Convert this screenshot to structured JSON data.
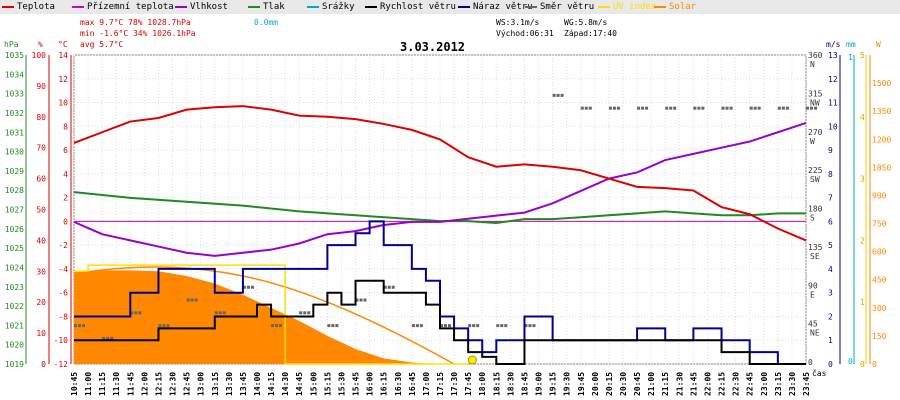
{
  "legend": [
    {
      "label": "Teplota",
      "color": "#dd0000"
    },
    {
      "label": "Přízemní teplota",
      "color": "#cc00cc"
    },
    {
      "label": "Vlhkost",
      "color": "#9900cc"
    },
    {
      "label": "Tlak",
      "color": "#228822"
    },
    {
      "label": "Srážky",
      "color": "#00aacc"
    },
    {
      "label": "Rychlost větru",
      "color": "#000000"
    },
    {
      "label": "Náraz větru",
      "color": "#000099"
    },
    {
      "label": "Směr větru",
      "color": "#666666"
    },
    {
      "label": "UV index",
      "color": "#ffdd00"
    },
    {
      "label": "Solar",
      "color": "#ff8800"
    }
  ],
  "stats": {
    "max": "max  9.7°C  78%  1028.7hPa",
    "min": "min -1.6°C  34%  1026.1hPa",
    "avg": "avg  5.7°C",
    "rain": "0.0mm",
    "ws": "WS:3.1m/s",
    "wg": "WG:5.8m/s",
    "sunrise": "Východ:06:31",
    "sunset": "Západ:17:40"
  },
  "date": "3.03.2012",
  "colors": {
    "temp": "#dd0000",
    "hum": "#9900cc",
    "press": "#228822",
    "rain": "#00aacc",
    "wind": "#000000",
    "gust": "#000099",
    "dir": "#666666",
    "uv": "#ffdd00",
    "solar": "#ff8800"
  },
  "chart_data": {
    "type": "line",
    "xlabel": "čas",
    "x_ticks": [
      "10:45",
      "11:00",
      "11:15",
      "11:30",
      "11:45",
      "12:00",
      "12:15",
      "12:30",
      "12:45",
      "13:00",
      "13:15",
      "13:30",
      "13:45",
      "14:00",
      "14:15",
      "14:30",
      "14:45",
      "15:00",
      "15:15",
      "15:30",
      "15:45",
      "16:00",
      "16:15",
      "16:30",
      "16:45",
      "17:00",
      "17:15",
      "17:30",
      "17:45",
      "18:00",
      "18:15",
      "18:30",
      "18:45",
      "19:00",
      "19:15",
      "19:30",
      "19:45",
      "20:00",
      "20:15",
      "20:30",
      "20:45",
      "21:00",
      "21:15",
      "21:30",
      "21:45",
      "22:00",
      "22:15",
      "22:30",
      "22:45",
      "23:00",
      "23:15",
      "23:30",
      "23:45"
    ],
    "axes": {
      "hpa": {
        "label": "hPa",
        "range": [
          1019,
          1035
        ],
        "ticks": [
          "1035",
          "1034",
          "1033",
          "1032",
          "1031",
          "1030",
          "1029",
          "1028",
          "1027",
          "1026",
          "1025",
          "1024",
          "1023",
          "1022",
          "1021",
          "1020",
          "1019"
        ]
      },
      "pct": {
        "label": "%",
        "range": [
          0,
          100
        ],
        "ticks": [
          "100",
          "90",
          "80",
          "70",
          "60",
          "50",
          "40",
          "30",
          "20",
          "10",
          "0"
        ]
      },
      "temp": {
        "label": "°C",
        "range": [
          -12,
          14
        ],
        "ticks": [
          "14",
          "12",
          "10",
          "8",
          "6",
          "4",
          "2",
          "0",
          "-2",
          "-4",
          "-6",
          "-8",
          "-10",
          "-12"
        ]
      },
      "dir": {
        "ticks": [
          {
            "deg": 360,
            "label": "360",
            "sub": "N"
          },
          {
            "deg": 315,
            "label": "315",
            "sub": "NW"
          },
          {
            "deg": 270,
            "label": "270",
            "sub": "W"
          },
          {
            "deg": 225,
            "label": "225",
            "sub": "SW"
          },
          {
            "deg": 180,
            "label": "180",
            "sub": "S"
          },
          {
            "deg": 135,
            "label": "135",
            "sub": "SE"
          },
          {
            "deg": 90,
            "label": "90",
            "sub": "E"
          },
          {
            "deg": 45,
            "label": "45",
            "sub": "NE"
          },
          {
            "deg": 0,
            "label": "0",
            "sub": ""
          }
        ]
      },
      "ms": {
        "label": "m/s",
        "range": [
          0,
          13
        ],
        "ticks": [
          "13",
          "12",
          "11",
          "10",
          "9",
          "8",
          "7",
          "6",
          "5",
          "4",
          "3",
          "2",
          "1",
          "0"
        ]
      },
      "mm": {
        "label": "mm",
        "range": [
          0,
          1
        ],
        "ticks": [
          "1",
          "0"
        ]
      },
      "uv": {
        "label": "",
        "range": [
          0,
          5
        ],
        "ticks": [
          "5",
          "4",
          "3",
          "2",
          "1",
          "0"
        ]
      },
      "w": {
        "label": "W",
        "range": [
          0,
          1650
        ],
        "ticks": [
          "1500",
          "1350",
          "1200",
          "1050",
          "900",
          "750",
          "600",
          "450",
          "300",
          "150",
          "0"
        ]
      }
    },
    "series": [
      {
        "name": "Teplota",
        "axis": "temp",
        "x": [
          0,
          2,
          4,
          6,
          8,
          10,
          12,
          14,
          16,
          18,
          20,
          22,
          24,
          26,
          28,
          30,
          32,
          34,
          36,
          38,
          40,
          42,
          44,
          46,
          48,
          50,
          52
        ],
        "values": [
          6.6,
          7.5,
          8.4,
          8.7,
          9.4,
          9.6,
          9.7,
          9.4,
          8.9,
          8.8,
          8.6,
          8.2,
          7.7,
          6.9,
          5.4,
          4.6,
          4.8,
          4.6,
          4.3,
          3.6,
          2.9,
          2.8,
          2.6,
          1.2,
          0.6,
          -0.6,
          -1.6
        ]
      },
      {
        "name": "Vlhkost",
        "axis": "pct",
        "x": [
          0,
          1,
          2,
          4,
          6,
          8,
          10,
          12,
          14,
          16,
          18,
          20,
          22,
          24,
          26,
          28,
          30,
          32,
          34,
          36,
          38,
          40,
          42,
          44,
          46,
          48,
          50,
          52
        ],
        "values": [
          46,
          44,
          42,
          40,
          38,
          36,
          35,
          36,
          37,
          39,
          42,
          43,
          45,
          46,
          46,
          47,
          48,
          49,
          52,
          56,
          60,
          62,
          66,
          68,
          70,
          72,
          75,
          78
        ]
      },
      {
        "name": "Tlak",
        "axis": "hpa",
        "x": [
          0,
          4,
          8,
          12,
          16,
          20,
          24,
          26,
          28,
          30,
          32,
          34,
          36,
          38,
          40,
          42,
          44,
          46,
          48,
          50,
          52
        ],
        "values": [
          1027.9,
          1027.6,
          1027.4,
          1027.2,
          1026.9,
          1026.7,
          1026.5,
          1026.4,
          1026.4,
          1026.3,
          1026.5,
          1026.5,
          1026.6,
          1026.7,
          1026.8,
          1026.9,
          1026.8,
          1026.7,
          1026.7,
          1026.8,
          1026.8
        ]
      },
      {
        "name": "Rychlost větru",
        "axis": "ms",
        "x": [
          0,
          2,
          4,
          6,
          8,
          10,
          12,
          13,
          14,
          16,
          17,
          18,
          19,
          20,
          22,
          24,
          25,
          26,
          27,
          28,
          29,
          30,
          32,
          34,
          36,
          38,
          40,
          42,
          44,
          46,
          48,
          50,
          52
        ],
        "values": [
          1,
          1,
          1,
          1.5,
          1.5,
          2,
          2,
          2.5,
          2,
          2,
          2.5,
          3,
          2.5,
          3.5,
          3,
          3,
          2.5,
          1.5,
          1,
          0.5,
          0.3,
          0,
          1,
          1,
          1,
          1,
          1,
          1,
          1,
          0.5,
          0,
          0,
          0
        ]
      },
      {
        "name": "Náraz větru",
        "axis": "ms",
        "x": [
          0,
          2,
          4,
          6,
          8,
          10,
          12,
          14,
          16,
          18,
          20,
          21,
          22,
          23,
          24,
          25,
          26,
          27,
          28,
          29,
          30,
          32,
          34,
          36,
          38,
          40,
          42,
          44,
          46,
          48,
          50,
          52
        ],
        "values": [
          2,
          2,
          3,
          4,
          4,
          3,
          4,
          4,
          4,
          5,
          5.5,
          6,
          5,
          5,
          4,
          3.5,
          2,
          1.5,
          1,
          0.5,
          1,
          2,
          1,
          1,
          1,
          1.5,
          1,
          1.5,
          1,
          0.5,
          0,
          0
        ]
      },
      {
        "name": "Solar",
        "axis": "w",
        "x": [
          0,
          2,
          4,
          6,
          8,
          10,
          12,
          14,
          16,
          18,
          20,
          22,
          24,
          25,
          26,
          27,
          28
        ],
        "values": [
          490,
          500,
          500,
          495,
          470,
          430,
          370,
          300,
          230,
          150,
          80,
          30,
          8,
          3,
          1,
          0,
          0
        ]
      },
      {
        "name": "UV index",
        "axis": "uv",
        "x": [
          0,
          1,
          2,
          4,
          6,
          8,
          10,
          12,
          13,
          14,
          15,
          16,
          18,
          20,
          22,
          24,
          26,
          28
        ],
        "values": [
          1.5,
          1.6,
          1.6,
          1.6,
          1.6,
          1.6,
          1.6,
          1.6,
          1.6,
          1.6,
          0,
          0,
          0,
          0,
          0,
          0,
          0,
          0
        ]
      },
      {
        "name": "Směr větru",
        "axis": "dir",
        "x": [
          0,
          2,
          4,
          6,
          8,
          10,
          12,
          14,
          16,
          18,
          20,
          22,
          24,
          26,
          28,
          30,
          32,
          34,
          36,
          38,
          40,
          42,
          44,
          46,
          48,
          50,
          52
        ],
        "values": [
          45,
          30,
          60,
          45,
          75,
          60,
          90,
          45,
          60,
          45,
          75,
          90,
          45,
          45,
          45,
          45,
          45,
          315,
          300,
          300,
          300,
          300,
          300,
          300,
          300,
          300,
          300
        ]
      }
    ]
  }
}
